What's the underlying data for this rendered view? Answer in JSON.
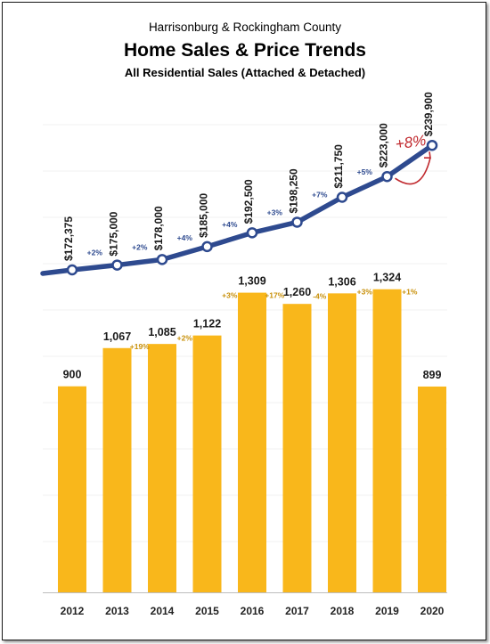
{
  "title_line1": "Harrisonburg & Rockingham County",
  "title_line2": "Home Sales & Price Trends",
  "title_line3": "All Residential Sales (Attached & Detached)",
  "colors": {
    "bar": "#F9B71B",
    "line": "#2E4A8F",
    "change_bar": "#C8900A",
    "change_line": "#2E4A8F",
    "callout": "#C0282D"
  },
  "chart_data": [
    {
      "type": "bar",
      "categories": [
        "2012",
        "2013",
        "2014",
        "2015",
        "2016",
        "2017",
        "2018",
        "2019",
        "2020"
      ],
      "values": [
        900,
        1067,
        1085,
        1122,
        1309,
        1260,
        1306,
        1324,
        899
      ],
      "value_labels": [
        "900",
        "1,067",
        "1,085",
        "1,122",
        "1,309",
        "1,260",
        "1,306",
        "1,324",
        "899"
      ],
      "changes": [
        "+19%",
        "+2%",
        "+3%",
        "+17%",
        "-4%",
        "+3%",
        "+1%"
      ],
      "ylim": [
        0,
        1400
      ]
    },
    {
      "type": "line",
      "categories": [
        "2012",
        "2013",
        "2014",
        "2015",
        "2016",
        "2017",
        "2018",
        "2019",
        "2020"
      ],
      "values": [
        172375,
        175000,
        178000,
        185000,
        192500,
        198250,
        211750,
        223000,
        239900
      ],
      "value_labels": [
        "$172,375",
        "$175,000",
        "$178,000",
        "$185,000",
        "$192,500",
        "$198,250",
        "$211,750",
        "$223,000",
        "$239,900"
      ],
      "changes": [
        "+2%",
        "+2%",
        "+4%",
        "+4%",
        "+3%",
        "+7%",
        "+5%"
      ],
      "callout": "+8%"
    }
  ]
}
